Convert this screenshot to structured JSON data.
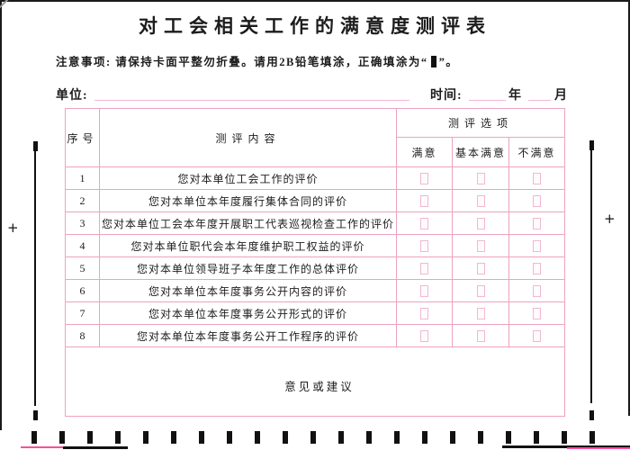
{
  "title": "对工会相关工作的满意度测评表",
  "notice": {
    "prefix": "注意事项: 请保持卡面平整勿折叠。请用2B铅笔填涂，正确填涂为“",
    "suffix": "”。"
  },
  "form": {
    "unit_label": "单位:",
    "time_label": "时间:",
    "year_label": "年",
    "month_label": "月"
  },
  "table": {
    "header": {
      "no": "序号",
      "content": "测评内容",
      "options_group": "测评选项",
      "options": [
        "满意",
        "基本满意",
        "不满意"
      ]
    },
    "rows": [
      {
        "no": "1",
        "content": "您对本单位工会工作的评价"
      },
      {
        "no": "2",
        "content": "您对本单位本年度履行集体合同的评价"
      },
      {
        "no": "3",
        "content": "您对本单位工会本年度开展职工代表巡视检查工作的评价"
      },
      {
        "no": "4",
        "content": "您对本单位职代会本年度维护职工权益的评价"
      },
      {
        "no": "5",
        "content": "您对本单位领导班子本年度工作的总体评价"
      },
      {
        "no": "6",
        "content": "您对本单位本年度事务公开内容的评价"
      },
      {
        "no": "7",
        "content": "您对本单位本年度事务公开形式的评价"
      },
      {
        "no": "8",
        "content": "您对本单位本年度事务公开工作程序的评价"
      }
    ],
    "suggestions_label": "意见或建议"
  },
  "registration": {
    "plus_left": "+",
    "plus_right": "+",
    "timing_mark_count": 21
  },
  "colors": {
    "table_border": "#eda3c0",
    "bubble_border": "#f2b7d0",
    "underline": "#f2b7d0",
    "edge_pink": "#f550a0",
    "ink": "#111111"
  }
}
